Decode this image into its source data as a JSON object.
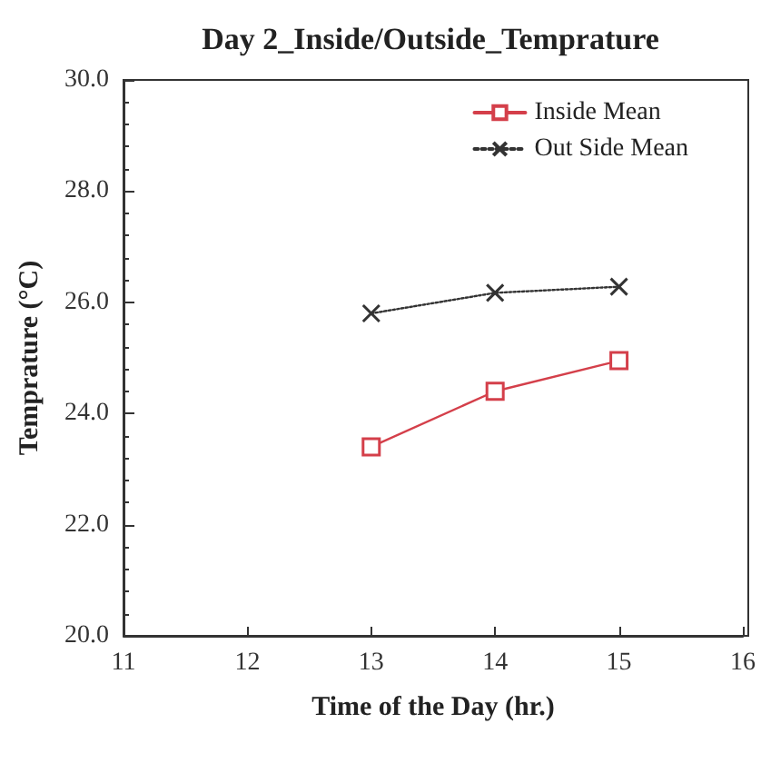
{
  "chart_data": {
    "type": "line",
    "title": "Day 2_Inside/Outside_Temprature",
    "xlabel": "Time of the Day (hr.)",
    "ylabel": "Temprature (°C)",
    "x": [
      13,
      14,
      15
    ],
    "series": [
      {
        "name": "Inside Mean",
        "color": "#d43f4a",
        "values": [
          23.4,
          24.4,
          24.95
        ],
        "marker": "square",
        "line_style": "solid"
      },
      {
        "name": "Out Side Mean",
        "color": "#333333",
        "values": [
          25.8,
          26.17,
          26.28
        ],
        "marker": "cross",
        "line_style": "dotted"
      }
    ],
    "xlim": [
      11,
      16
    ],
    "xticks": [
      11,
      12,
      13,
      14,
      15,
      16
    ],
    "ylim": [
      20,
      30
    ],
    "yticks": [
      {
        "value": 20,
        "label": "20.0"
      },
      {
        "value": 22,
        "label": "22.0"
      },
      {
        "value": 24,
        "label": "24.0"
      },
      {
        "value": 26,
        "label": "26.0"
      },
      {
        "value": 28,
        "label": "28.0"
      },
      {
        "value": 30,
        "label": "30.0"
      }
    ],
    "grid": false,
    "legend": "top right"
  }
}
